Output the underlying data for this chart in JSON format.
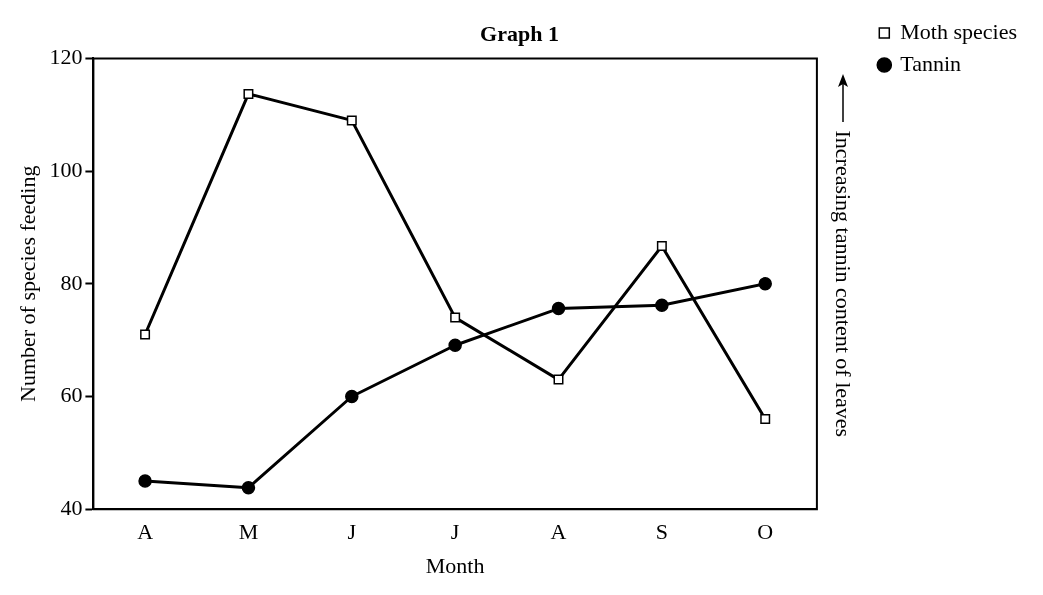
{
  "chart_data": {
    "type": "line",
    "title": "Graph 1",
    "xlabel": "Month",
    "ylabel": "Number of species feeding",
    "y2label": "Increasing tannin content of leaves",
    "categories": [
      "A",
      "M",
      "J",
      "J",
      "A",
      "S",
      "O"
    ],
    "ylim": [
      40,
      120
    ],
    "yticks": [
      40,
      60,
      80,
      100,
      120
    ],
    "grid": false,
    "legend": "top right",
    "series": [
      {
        "name": "Moth species",
        "color": "#000000",
        "marker": "square",
        "values": [
          71,
          113.7,
          109,
          74,
          63,
          86.7,
          56
        ]
      },
      {
        "name": "Tannin",
        "color": "#000000",
        "marker": "circle",
        "values": [
          45,
          43.8,
          60,
          69.1,
          75.6,
          76.2,
          80
        ]
      }
    ]
  }
}
